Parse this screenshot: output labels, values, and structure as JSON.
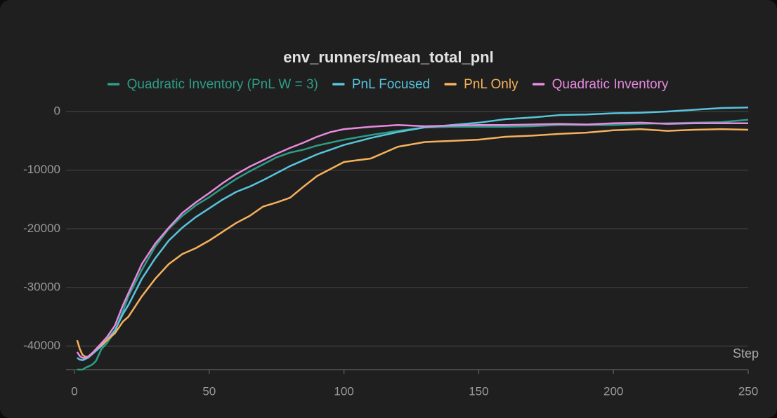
{
  "chart_data": {
    "type": "line",
    "title": "env_runners/mean_total_pnl",
    "x_label": "Step",
    "x": [
      1,
      2,
      3,
      4,
      5,
      6,
      7,
      8,
      10,
      12,
      15,
      18,
      20,
      25,
      30,
      35,
      40,
      45,
      50,
      55,
      60,
      65,
      70,
      75,
      80,
      85,
      90,
      95,
      100,
      110,
      120,
      130,
      140,
      150,
      160,
      170,
      180,
      190,
      200,
      210,
      220,
      230,
      240,
      250
    ],
    "series": [
      {
        "name": "Quadratic Inventory (PnL W = 3)",
        "color": "#2e9c86",
        "values": [
          -44000,
          -44000,
          -44000,
          -43700,
          -43500,
          -43300,
          -43000,
          -42500,
          -40500,
          -39500,
          -37500,
          -34000,
          -31500,
          -27000,
          -23000,
          -20000,
          -17800,
          -16000,
          -14600,
          -13000,
          -11500,
          -10200,
          -9000,
          -7800,
          -7000,
          -6500,
          -5800,
          -5300,
          -4800,
          -4000,
          -3300,
          -2700,
          -2600,
          -2600,
          -2600,
          -2500,
          -2300,
          -2300,
          -2300,
          -2100,
          -2000,
          -1900,
          -1800,
          -1400
        ]
      },
      {
        "name": "PnL Focused",
        "color": "#58c4dd",
        "values": [
          -42000,
          -42300,
          -42400,
          -42200,
          -42000,
          -41600,
          -41200,
          -40800,
          -40000,
          -39000,
          -37300,
          -34500,
          -33000,
          -28500,
          -25000,
          -22000,
          -19800,
          -18000,
          -16500,
          -15000,
          -13700,
          -12800,
          -11700,
          -10500,
          -9300,
          -8300,
          -7300,
          -6500,
          -5700,
          -4500,
          -3500,
          -2700,
          -2300,
          -1900,
          -1300,
          -1000,
          -600,
          -500,
          -300,
          -200,
          0,
          300,
          600,
          700
        ]
      },
      {
        "name": "PnL Only",
        "color": "#f6b15c",
        "values": [
          -39000,
          -40500,
          -41500,
          -41800,
          -41800,
          -41500,
          -41000,
          -40500,
          -39800,
          -39000,
          -37800,
          -35800,
          -35000,
          -31500,
          -28500,
          -26000,
          -24300,
          -23300,
          -22000,
          -20500,
          -19000,
          -17800,
          -16200,
          -15500,
          -14700,
          -12800,
          -11000,
          -9800,
          -8600,
          -8000,
          -6000,
          -5200,
          -5000,
          -4800,
          -4300,
          -4100,
          -3800,
          -3600,
          -3200,
          -3000,
          -3300,
          -3100,
          -3000,
          -3100
        ]
      },
      {
        "name": "Quadratic Inventory",
        "color": "#e88ae0",
        "values": [
          -41000,
          -41700,
          -42000,
          -42000,
          -41800,
          -41400,
          -41000,
          -40500,
          -39500,
          -38500,
          -36500,
          -33000,
          -31000,
          -26000,
          -22500,
          -19800,
          -17300,
          -15500,
          -13900,
          -12200,
          -10700,
          -9400,
          -8300,
          -7200,
          -6200,
          -5300,
          -4300,
          -3500,
          -3000,
          -2600,
          -2300,
          -2500,
          -2400,
          -2300,
          -2300,
          -2200,
          -2100,
          -2200,
          -2000,
          -1900,
          -2100,
          -2000,
          -2000,
          -2000
        ]
      }
    ],
    "xlim": [
      0,
      250
    ],
    "xticks": [
      0,
      50,
      100,
      150,
      200,
      250
    ],
    "ylim": [
      -44000,
      1500
    ],
    "yticks": [
      0,
      -10000,
      -20000,
      -30000,
      -40000
    ],
    "grid": true
  }
}
